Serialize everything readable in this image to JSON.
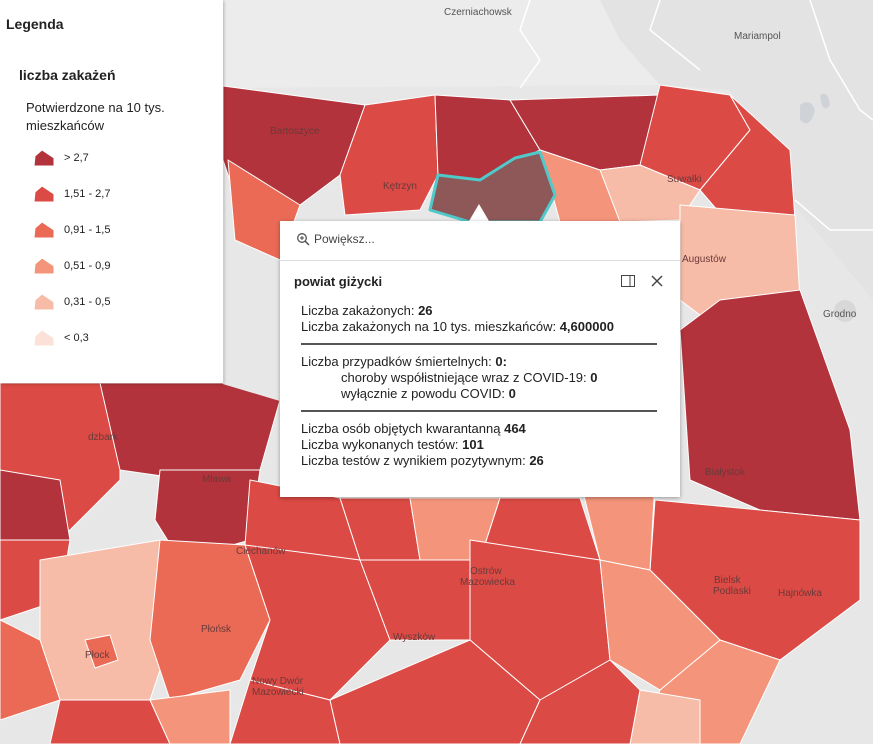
{
  "map": {
    "places": {
      "czerniachowsk": "Czerniachowsk",
      "mariampol": "Mariampol",
      "grodno": "Grodno",
      "bartoszyce": "Bartoszyce",
      "ketrzyn": "Kętrzyn",
      "suwalki": "Suwałki",
      "augustow": "Augustów",
      "dzbark": "dzbark",
      "mlawa": "Mława",
      "bialystok": "Białystok",
      "ciechanow": "Ciechanów",
      "ostrow_1": "Ostrów",
      "ostrow_2": "Mazowiecka",
      "bielsk_1": "Bielsk",
      "bielsk_2": "Podlaski",
      "hajnowka": "Hajnówka",
      "plonsk": "Płońsk",
      "wyszkow": "Wyszków",
      "plock": "Płock",
      "nowy_dwor_1": "Nowy Dwór",
      "nowy_dwor_2": "Mazowiecki"
    },
    "colors": {
      "class_6": "#b2333b",
      "class_5": "#db4a44",
      "class_4": "#ea6a55",
      "class_3": "#f4957b",
      "class_2": "#f7bca8",
      "class_1": "#fbe1d7",
      "selected": "#8e5758",
      "highlight": "#4fc9c9"
    }
  },
  "legend": {
    "title": "Legenda",
    "layer_title": "liczba zakażeń",
    "field_title": "Potwierdzone na 10 tys. mieszkańców",
    "classes": [
      {
        "label": "> 2,7",
        "color": "#b2333b"
      },
      {
        "label": "1,51 - 2,7",
        "color": "#db4a44"
      },
      {
        "label": "0,91 - 1,5",
        "color": "#ea6a55"
      },
      {
        "label": "0,51 - 0,9",
        "color": "#f4957b"
      },
      {
        "label": "0,31 - 0,5",
        "color": "#f7bca8"
      },
      {
        "label": "< 0,3",
        "color": "#fbe1d7"
      }
    ]
  },
  "popup": {
    "zoom_label": "Powiększ...",
    "title": "powiat giżycki",
    "cases_label": "Liczba zakażonych:",
    "cases_value": "26",
    "rate_label": "Liczba zakażonych na 10 tys. mieszkańców:",
    "rate_value": "4,600000",
    "deaths_label": "Liczba przypadków śmiertelnych:",
    "deaths_value": "0:",
    "comorb_label": "choroby współistniejące wraz z COVID-19:",
    "comorb_value": "0",
    "covid_only_label": "wyłącznie z powodu COVID:",
    "covid_only_value": "0",
    "quarantine_label": "Liczba osób objętych kwarantanną",
    "quarantine_value": "464",
    "tests_label": "Liczba wykonanych testów:",
    "tests_value": "101",
    "positive_label": "Liczba testów z wynikiem pozytywnym:",
    "positive_value": "26"
  }
}
